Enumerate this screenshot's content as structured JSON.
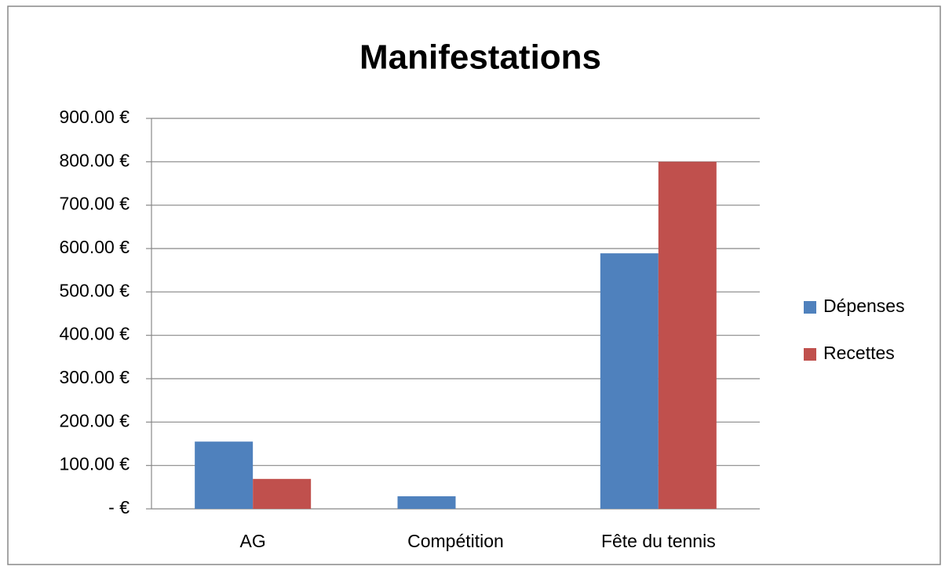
{
  "chart_data": {
    "type": "bar",
    "title": "Manifestations",
    "categories": [
      "AG",
      "Compétition",
      "Fête du tennis"
    ],
    "series": [
      {
        "name": "Dépenses",
        "color": "#4f81bd",
        "values": [
          155,
          29,
          589
        ]
      },
      {
        "name": "Recettes",
        "color": "#c0504d",
        "values": [
          69,
          0,
          800
        ]
      }
    ],
    "ylim": [
      0,
      900
    ],
    "yticks": [
      {
        "value": 0,
        "label": "-  €"
      },
      {
        "value": 100,
        "label": "100.00 €"
      },
      {
        "value": 200,
        "label": "200.00 €"
      },
      {
        "value": 300,
        "label": "300.00 €"
      },
      {
        "value": 400,
        "label": "400.00 €"
      },
      {
        "value": 500,
        "label": "500.00 €"
      },
      {
        "value": 600,
        "label": "600.00 €"
      },
      {
        "value": 700,
        "label": "700.00 €"
      },
      {
        "value": 800,
        "label": "800.00 €"
      },
      {
        "value": 900,
        "label": "900.00 €"
      }
    ],
    "grid": true,
    "legend": "right"
  }
}
